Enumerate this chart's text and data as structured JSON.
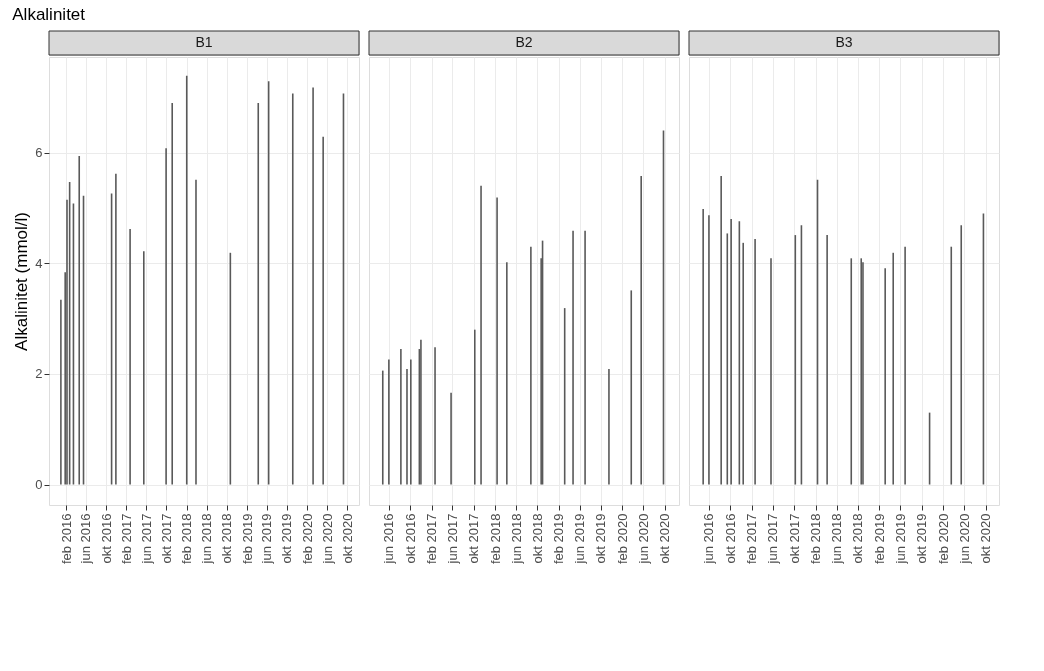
{
  "chart_data": [
    {
      "type": "bar",
      "title": "Alkalinitet",
      "subtitle": "B1",
      "ylabel": "Alkalinitet (mmol/l)",
      "color": "#595959",
      "grid": true,
      "x": [
        "2016-01-01",
        "2016-01-27",
        "2016-02-07",
        "2016-02-23",
        "2016-03-17",
        "2016-04-21",
        "2016-05-17",
        "2016-11-03",
        "2016-11-29",
        "2017-02-23",
        "2017-05-17",
        "2017-09-29",
        "2017-11-05",
        "2018-02-01",
        "2018-03-29",
        "2018-10-23",
        "2019-04-10",
        "2019-06-12",
        "2019-11-05",
        "2020-03-07",
        "2020-05-07",
        "2020-09-07"
      ],
      "values": [
        3.34,
        3.84,
        5.15,
        5.47,
        5.08,
        5.94,
        5.22,
        5.26,
        5.62,
        4.62,
        4.22,
        6.08,
        6.9,
        7.39,
        5.51,
        4.19,
        6.9,
        7.29,
        7.07,
        7.18,
        6.29,
        7.07
      ],
      "xlim": [
        "2015-10-21",
        "2020-12-10"
      ],
      "xticks": [
        {
          "value": "2016-02-01",
          "label": "feb 2016"
        },
        {
          "value": "2016-06-01",
          "label": "jun 2016"
        },
        {
          "value": "2016-10-01",
          "label": "okt 2016"
        },
        {
          "value": "2017-02-01",
          "label": "feb 2017"
        },
        {
          "value": "2017-06-01",
          "label": "jun 2017"
        },
        {
          "value": "2017-10-01",
          "label": "okt 2017"
        },
        {
          "value": "2018-02-01",
          "label": "feb 2018"
        },
        {
          "value": "2018-06-01",
          "label": "jun 2018"
        },
        {
          "value": "2018-10-01",
          "label": "okt 2018"
        },
        {
          "value": "2019-02-01",
          "label": "feb 2019"
        },
        {
          "value": "2019-06-01",
          "label": "jun 2019"
        },
        {
          "value": "2019-10-01",
          "label": "okt 2019"
        },
        {
          "value": "2020-02-01",
          "label": "feb 2020"
        },
        {
          "value": "2020-06-01",
          "label": "jun 2020"
        },
        {
          "value": "2020-10-01",
          "label": "okt 2020"
        }
      ],
      "ylim": [
        -0.37,
        7.73
      ],
      "yticks": [
        0,
        2,
        4,
        6
      ]
    },
    {
      "type": "bar",
      "subtitle": "B2",
      "color": "#595959",
      "grid": true,
      "tick_labels": "x",
      "x": [
        "2016-04-27",
        "2016-06-01",
        "2016-08-09",
        "2016-09-13",
        "2016-10-05",
        "2016-11-23",
        "2016-12-02",
        "2017-02-21",
        "2017-05-24",
        "2017-10-07",
        "2017-11-12",
        "2018-02-12",
        "2018-04-09",
        "2018-08-25",
        "2018-10-23",
        "2018-10-31",
        "2019-03-07",
        "2019-04-24",
        "2019-07-02",
        "2019-11-16",
        "2020-03-23",
        "2020-05-19",
        "2020-09-24"
      ],
      "values": [
        2.06,
        2.26,
        2.45,
        2.09,
        2.26,
        2.45,
        2.62,
        2.48,
        1.66,
        2.8,
        5.4,
        5.19,
        4.02,
        4.3,
        4.09,
        4.41,
        3.19,
        4.59,
        4.59,
        2.09,
        3.51,
        5.58,
        6.4
      ],
      "xlim": [
        "2016-02-08",
        "2020-12-22"
      ],
      "xticks": [
        {
          "value": "2016-06-01",
          "label": "jun 2016"
        },
        {
          "value": "2016-10-01",
          "label": "okt 2016"
        },
        {
          "value": "2017-02-01",
          "label": "feb 2017"
        },
        {
          "value": "2017-06-01",
          "label": "jun 2017"
        },
        {
          "value": "2017-10-01",
          "label": "okt 2017"
        },
        {
          "value": "2018-02-01",
          "label": "feb 2018"
        },
        {
          "value": "2018-06-01",
          "label": "jun 2018"
        },
        {
          "value": "2018-10-01",
          "label": "okt 2018"
        },
        {
          "value": "2019-02-01",
          "label": "feb 2019"
        },
        {
          "value": "2019-06-01",
          "label": "jun 2019"
        },
        {
          "value": "2019-10-01",
          "label": "okt 2019"
        },
        {
          "value": "2020-02-01",
          "label": "feb 2020"
        },
        {
          "value": "2020-06-01",
          "label": "jun 2020"
        },
        {
          "value": "2020-10-01",
          "label": "okt 2020"
        }
      ],
      "ylim": [
        -0.37,
        7.73
      ],
      "yticks": [
        0,
        2,
        4,
        6
      ]
    },
    {
      "type": "bar",
      "subtitle": "B3",
      "color": "#595959",
      "grid": true,
      "tick_labels": "x",
      "x": [
        "2016-04-29",
        "2016-06-01",
        "2016-08-10",
        "2016-09-14",
        "2016-10-06",
        "2016-11-22",
        "2016-12-14",
        "2017-02-20",
        "2017-05-22",
        "2017-10-08",
        "2017-11-12",
        "2018-02-12",
        "2018-04-08",
        "2018-08-24",
        "2018-10-20",
        "2018-10-30",
        "2019-03-06",
        "2019-04-21",
        "2019-06-28",
        "2019-11-15",
        "2020-03-18",
        "2020-05-14",
        "2020-09-18"
      ],
      "values": [
        4.98,
        4.87,
        5.58,
        4.54,
        4.8,
        4.76,
        4.37,
        4.44,
        4.09,
        4.51,
        4.69,
        5.51,
        4.51,
        4.09,
        4.09,
        4.02,
        3.91,
        4.19,
        4.3,
        1.3,
        4.3,
        4.69,
        4.9
      ],
      "xlim": [
        "2016-02-08",
        "2020-12-16"
      ],
      "xticks": [
        {
          "value": "2016-06-01",
          "label": "jun 2016"
        },
        {
          "value": "2016-10-01",
          "label": "okt 2016"
        },
        {
          "value": "2017-02-01",
          "label": "feb 2017"
        },
        {
          "value": "2017-06-01",
          "label": "jun 2017"
        },
        {
          "value": "2017-10-01",
          "label": "okt 2017"
        },
        {
          "value": "2018-02-01",
          "label": "feb 2018"
        },
        {
          "value": "2018-06-01",
          "label": "jun 2018"
        },
        {
          "value": "2018-10-01",
          "label": "okt 2018"
        },
        {
          "value": "2019-02-01",
          "label": "feb 2019"
        },
        {
          "value": "2019-06-01",
          "label": "jun 2019"
        },
        {
          "value": "2019-10-01",
          "label": "okt 2019"
        },
        {
          "value": "2020-02-01",
          "label": "feb 2020"
        },
        {
          "value": "2020-06-01",
          "label": "jun 2020"
        },
        {
          "value": "2020-10-01",
          "label": "okt 2020"
        }
      ],
      "ylim": [
        -0.37,
        7.73
      ],
      "yticks": [
        0,
        2,
        4,
        6
      ]
    }
  ]
}
